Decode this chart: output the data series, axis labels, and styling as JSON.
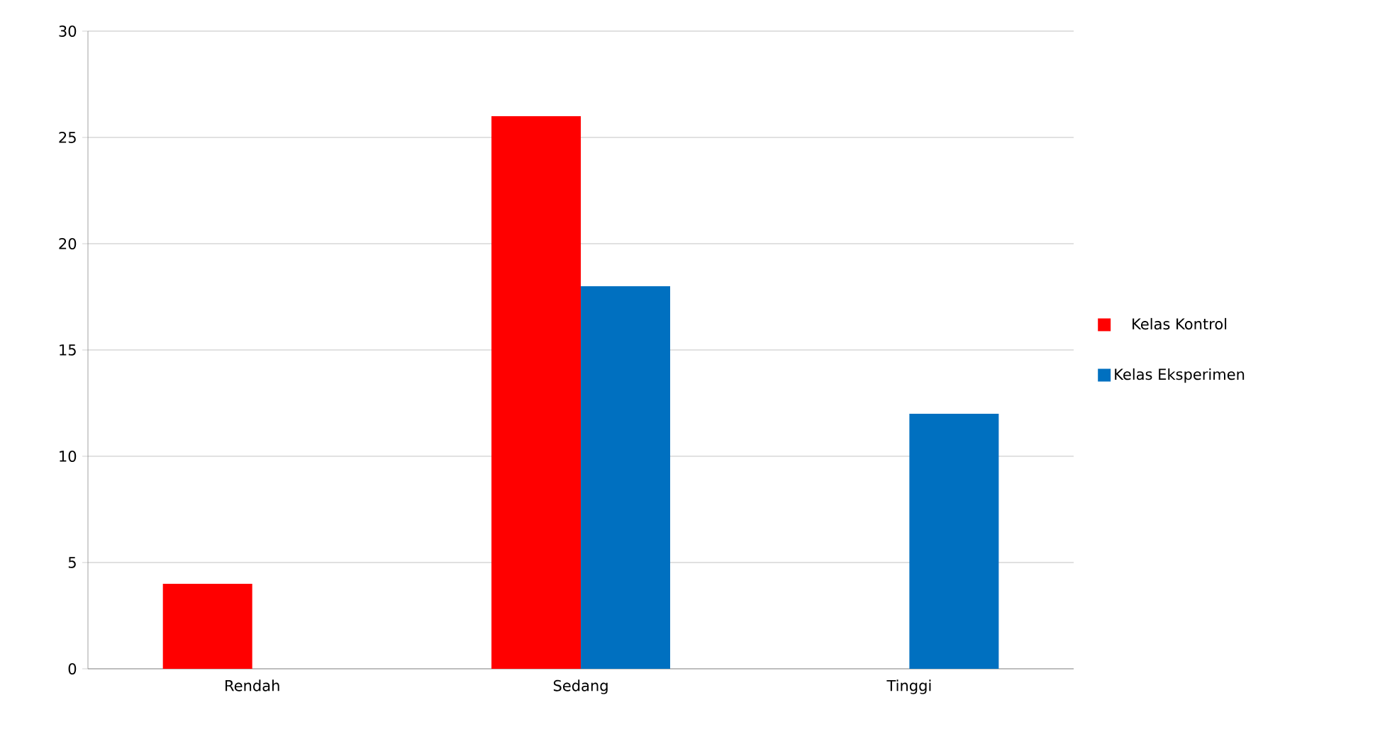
{
  "chart_data": {
    "type": "bar",
    "categories": [
      "Rendah",
      "Sedang",
      "Tinggi"
    ],
    "series": [
      {
        "name": "Kelas Kontrol",
        "color": "#ff0000",
        "values": [
          4,
          26,
          0
        ]
      },
      {
        "name": "Kelas Eksperimen",
        "color": "#0070c0",
        "values": [
          0,
          18,
          12
        ]
      }
    ],
    "ylim": [
      0,
      30
    ],
    "yticks": [
      0,
      5,
      10,
      15,
      20,
      25,
      30
    ],
    "grid": "y",
    "legend": "right"
  }
}
